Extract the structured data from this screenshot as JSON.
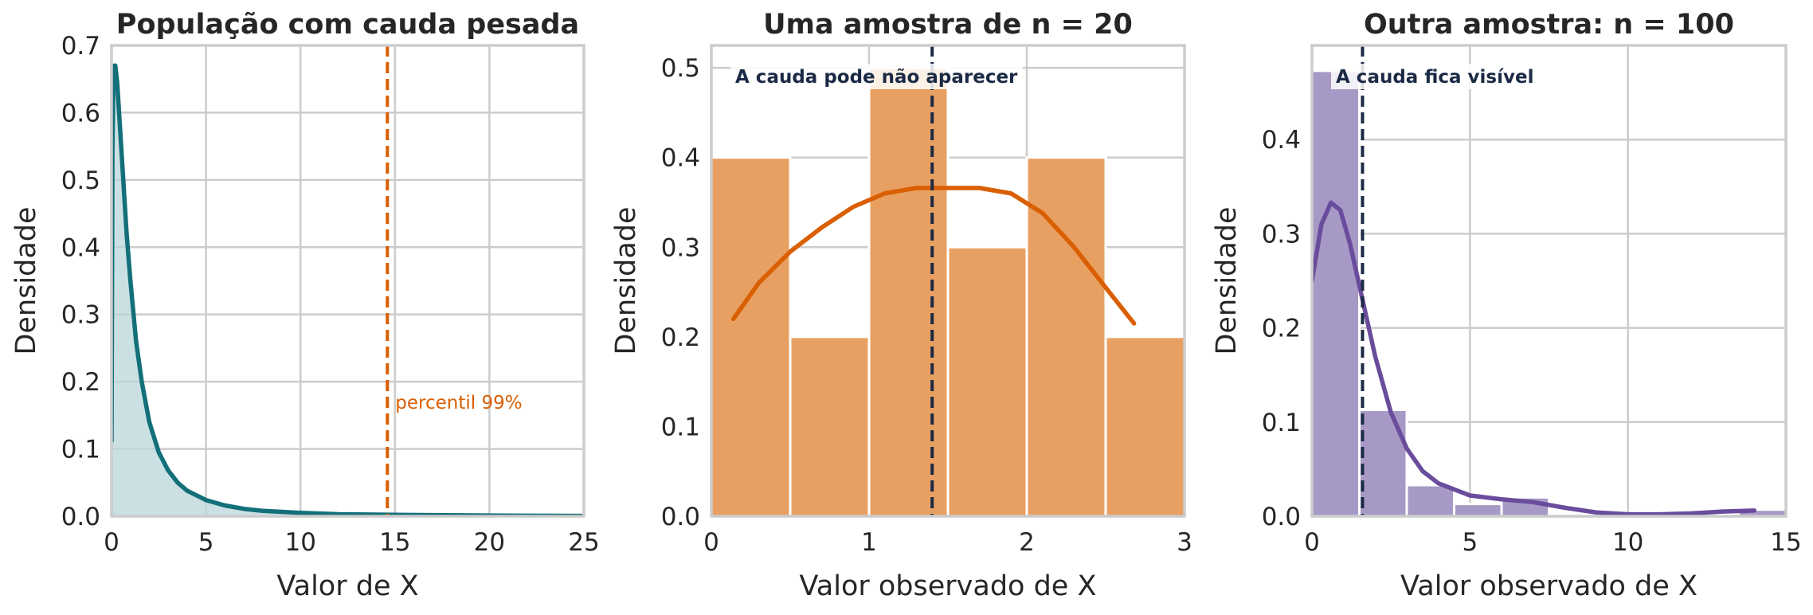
{
  "chart_data": [
    {
      "type": "area",
      "title": "População com cauda pesada",
      "xlabel": "Valor de X",
      "ylabel": "Densidade",
      "xlim": [
        0,
        25
      ],
      "ylim": [
        0,
        0.7
      ],
      "xticks": [
        0,
        5,
        10,
        15,
        20,
        25
      ],
      "yticks": [
        0.0,
        0.1,
        0.2,
        0.3,
        0.4,
        0.5,
        0.6,
        0.7
      ],
      "xtick_labels": [
        "0",
        "5",
        "10",
        "15",
        "20",
        "25"
      ],
      "ytick_labels": [
        "0.0",
        "0.1",
        "0.2",
        "0.3",
        "0.4",
        "0.5",
        "0.6",
        "0.7"
      ],
      "grid": true,
      "series": [
        {
          "x": [
            0.0,
            0.05,
            0.1,
            0.15,
            0.2,
            0.3,
            0.4,
            0.6,
            0.8,
            1.0,
            1.3,
            1.6,
            2.0,
            2.5,
            3.0,
            3.5,
            4.0,
            5.0,
            6.0,
            7.0,
            8.0,
            10.0,
            12.0,
            15.0,
            20.0,
            25.0
          ],
          "y": [
            0.11,
            0.55,
            0.65,
            0.67,
            0.67,
            0.645,
            0.6,
            0.51,
            0.42,
            0.35,
            0.26,
            0.2,
            0.14,
            0.095,
            0.068,
            0.05,
            0.038,
            0.024,
            0.016,
            0.011,
            0.008,
            0.005,
            0.003,
            0.002,
            0.001,
            0.0005
          ]
        }
      ],
      "vline": {
        "x": 14.6,
        "label": "percentil 99%"
      },
      "colors": {
        "line": "#136f7a",
        "fill": "#b8d6da",
        "vline": "#d95f02"
      }
    },
    {
      "type": "bar",
      "title": "Uma amostra de n = 20",
      "xlabel": "Valor observado de X",
      "ylabel": "Densidade",
      "xlim": [
        0,
        3
      ],
      "ylim": [
        0,
        0.525
      ],
      "xticks": [
        0,
        1,
        2,
        3
      ],
      "yticks": [
        0.0,
        0.1,
        0.2,
        0.3,
        0.4,
        0.5
      ],
      "xtick_labels": [
        "0",
        "1",
        "2",
        "3"
      ],
      "ytick_labels": [
        "0.0",
        "0.1",
        "0.2",
        "0.3",
        "0.4",
        "0.5"
      ],
      "grid": true,
      "bin_edges": [
        0.0,
        0.5,
        1.0,
        1.5,
        2.0,
        2.5,
        3.0
      ],
      "values": [
        0.4,
        0.2,
        0.5,
        0.3,
        0.4,
        0.2
      ],
      "kde": {
        "x": [
          0.14,
          0.3,
          0.5,
          0.7,
          0.9,
          1.1,
          1.3,
          1.5,
          1.7,
          1.9,
          2.1,
          2.3,
          2.5,
          2.68
        ],
        "y": [
          0.22,
          0.26,
          0.295,
          0.322,
          0.345,
          0.36,
          0.366,
          0.366,
          0.366,
          0.36,
          0.338,
          0.3,
          0.255,
          0.215
        ]
      },
      "vline": {
        "x": 1.4
      },
      "annotation": "A cauda pode não aparecer",
      "colors": {
        "bar": "#e8a062",
        "line": "#d95f02",
        "vline": "#1b2a45",
        "annotation": "#1b2a45"
      }
    },
    {
      "type": "bar",
      "title": "Outra amostra: n = 100",
      "xlabel": "Valor observado de X",
      "ylabel": "Densidade",
      "xlim": [
        0,
        15
      ],
      "ylim": [
        0,
        0.5
      ],
      "xticks": [
        0,
        5,
        10,
        15
      ],
      "yticks": [
        0.0,
        0.1,
        0.2,
        0.3,
        0.4
      ],
      "xtick_labels": [
        "0",
        "5",
        "10",
        "15"
      ],
      "ytick_labels": [
        "0.0",
        "0.1",
        "0.2",
        "0.3",
        "0.4"
      ],
      "grid": true,
      "bin_edges": [
        0.0,
        1.5,
        3.0,
        4.5,
        6.0,
        7.5,
        9.0,
        10.5,
        12.0,
        13.5,
        15.0
      ],
      "values": [
        0.473,
        0.113,
        0.033,
        0.013,
        0.02,
        0.0,
        0.0,
        0.0,
        0.0,
        0.007
      ],
      "kde": {
        "x": [
          0.0,
          0.3,
          0.6,
          0.9,
          1.2,
          1.6,
          2.0,
          2.5,
          3.0,
          3.5,
          4.0,
          5.0,
          6.0,
          7.0,
          8.0,
          9.0,
          10.0,
          11.0,
          12.0,
          13.0,
          14.0
        ],
        "y": [
          0.25,
          0.31,
          0.333,
          0.325,
          0.29,
          0.23,
          0.17,
          0.11,
          0.072,
          0.048,
          0.035,
          0.022,
          0.018,
          0.015,
          0.009,
          0.004,
          0.002,
          0.002,
          0.003,
          0.005,
          0.006
        ]
      },
      "vline": {
        "x": 1.6
      },
      "annotation": "A cauda fica visível",
      "colors": {
        "bar": "#a799c5",
        "line": "#6a4c9c",
        "vline": "#1b2a45",
        "annotation": "#1b2a45"
      }
    }
  ]
}
